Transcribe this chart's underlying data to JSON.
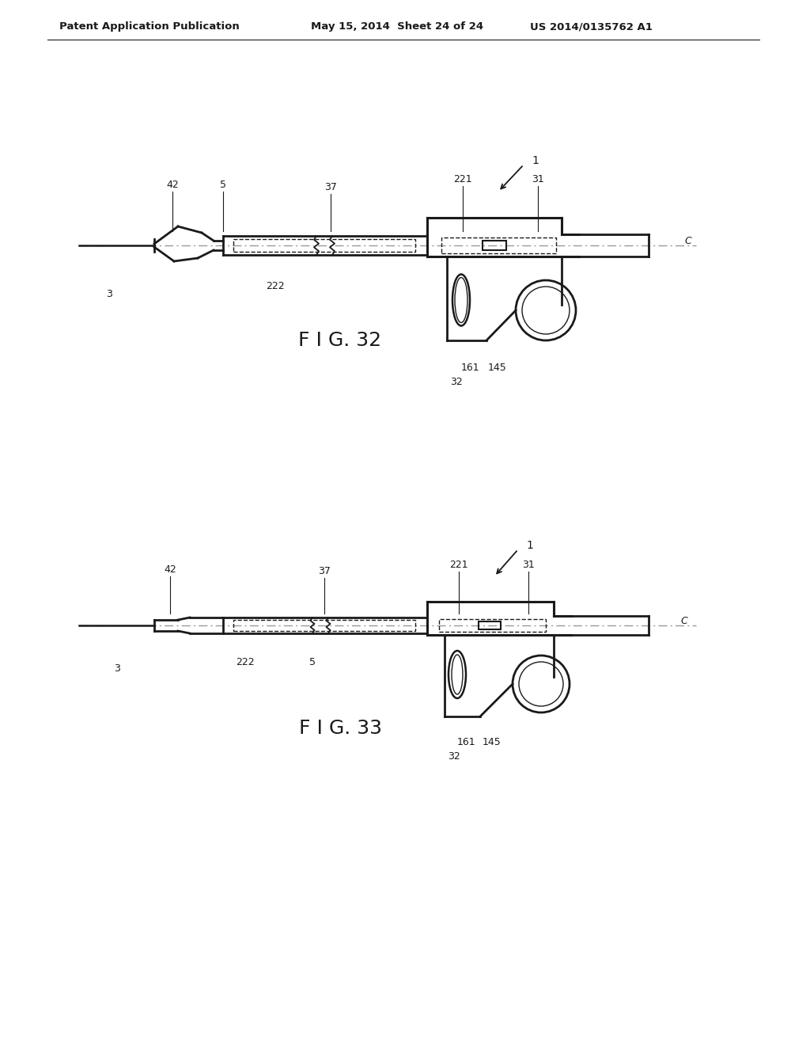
{
  "background_color": "#ffffff",
  "header_left": "Patent Application Publication",
  "header_mid": "May 15, 2014  Sheet 24 of 24",
  "header_right": "US 2014/0135762 A1",
  "fig32_label": "F I G. 32",
  "fig33_label": "F I G. 33",
  "line_color": "#1a1a1a",
  "dashed_color": "#1a1a1a",
  "center_line_color": "#999999",
  "text_color": "#1a1a1a",
  "header_fontsize": 9.5,
  "label_fontsize": 9,
  "fig_label_fontsize": 18
}
